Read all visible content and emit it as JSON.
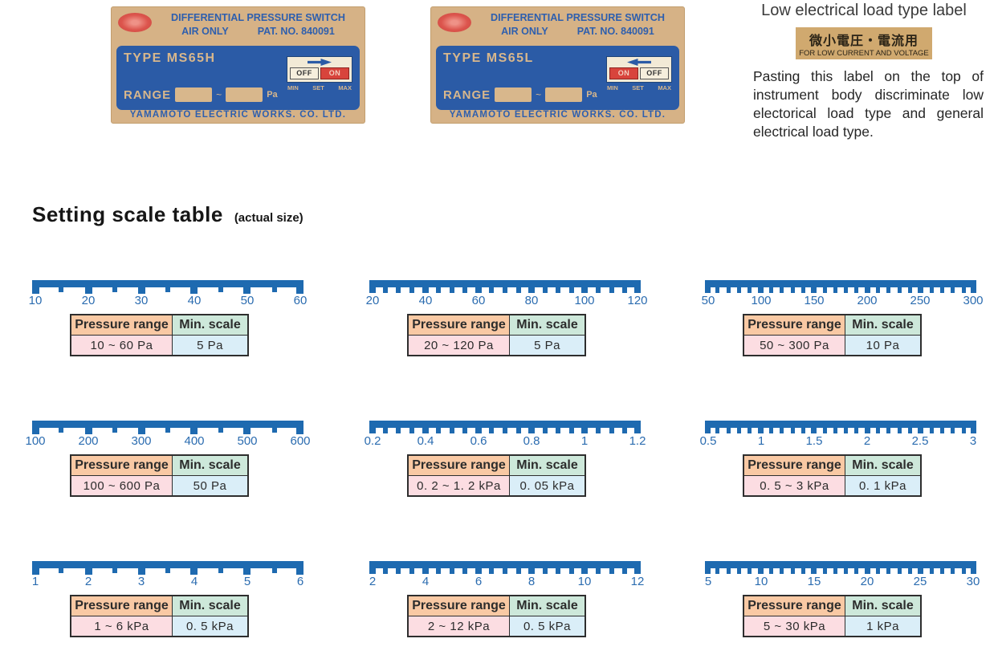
{
  "device_labels": {
    "h": {
      "title": "DIFFERENTIAL PRESSURE SWITCH",
      "air_only": "AIR ONLY",
      "pat_no": "PAT. NO. 840091",
      "type": "TYPE MS65H",
      "range_label": "RANGE",
      "range_tilde": "~",
      "unit": "Pa",
      "indicator_left": "OFF",
      "indicator_right": "ON",
      "min": "MIN",
      "set": "SET",
      "max": "MAX",
      "footer": "YAMAMOTO ELECTRIC WORKS. CO. LTD."
    },
    "l": {
      "title": "DIFFERENTIAL PRESSURE SWITCH",
      "air_only": "AIR ONLY",
      "pat_no": "PAT. NO. 840091",
      "type": "TYPE MS65L",
      "range_label": "RANGE",
      "range_tilde": "~",
      "unit": "Pa",
      "indicator_left": "ON",
      "indicator_right": "OFF",
      "min": "MIN",
      "set": "SET",
      "max": "MAX",
      "footer": "YAMAMOTO ELECTRIC WORKS. CO. LTD."
    }
  },
  "low_load_label": {
    "title": "Low electrical load type label",
    "sticker_jp": "微小電圧・電流用",
    "sticker_en": "FOR LOW CURRENT AND VOLTAGE",
    "description": "Pasting this label on the top of instrument body discriminate low electorical load type and general electrical load type."
  },
  "section": {
    "title": "Setting scale table",
    "subtitle": "(actual size)"
  },
  "table_headers": {
    "pressure": "Pressure range",
    "min_scale": "Min. scale"
  },
  "scales": [
    {
      "min": 10,
      "max": 60,
      "step": 5,
      "tick_labels": [
        "10",
        "20",
        "30",
        "40",
        "50",
        "60"
      ],
      "label_values": [
        10,
        20,
        30,
        40,
        50,
        60
      ],
      "pressure_range": "10 ~ 60 Pa",
      "min_scale": "5 Pa"
    },
    {
      "min": 20,
      "max": 120,
      "step": 5,
      "tick_labels": [
        "20",
        "40",
        "60",
        "80",
        "100",
        "120"
      ],
      "label_values": [
        20,
        40,
        60,
        80,
        100,
        120
      ],
      "pressure_range": "20 ~ 120 Pa",
      "min_scale": "5 Pa"
    },
    {
      "min": 50,
      "max": 300,
      "step": 10,
      "tick_labels": [
        "50",
        "100",
        "150",
        "200",
        "250",
        "300"
      ],
      "label_values": [
        50,
        100,
        150,
        200,
        250,
        300
      ],
      "pressure_range": "50 ~ 300 Pa",
      "min_scale": "10 Pa"
    },
    {
      "min": 100,
      "max": 600,
      "step": 50,
      "tick_labels": [
        "100",
        "200",
        "300",
        "400",
        "500",
        "600"
      ],
      "label_values": [
        100,
        200,
        300,
        400,
        500,
        600
      ],
      "pressure_range": "100 ~ 600 Pa",
      "min_scale": "50 Pa"
    },
    {
      "min": 0.2,
      "max": 1.2,
      "step": 0.05,
      "tick_labels": [
        "0.2",
        "0.4",
        "0.6",
        "0.8",
        "1",
        "1.2"
      ],
      "label_values": [
        0.2,
        0.4,
        0.6,
        0.8,
        1,
        1.2
      ],
      "pressure_range": "0. 2 ~ 1. 2 kPa",
      "min_scale": "0. 05 kPa"
    },
    {
      "min": 0.5,
      "max": 3,
      "step": 0.1,
      "tick_labels": [
        "0.5",
        "1",
        "1.5",
        "2",
        "2.5",
        "3"
      ],
      "label_values": [
        0.5,
        1,
        1.5,
        2,
        2.5,
        3
      ],
      "pressure_range": "0. 5 ~ 3 kPa",
      "min_scale": "0. 1 kPa"
    },
    {
      "min": 1,
      "max": 6,
      "step": 0.5,
      "tick_labels": [
        "1",
        "2",
        "3",
        "4",
        "5",
        "6"
      ],
      "label_values": [
        1,
        2,
        3,
        4,
        5,
        6
      ],
      "pressure_range": "1 ~ 6 kPa",
      "min_scale": "0. 5 kPa"
    },
    {
      "min": 2,
      "max": 12,
      "step": 0.5,
      "tick_labels": [
        "2",
        "4",
        "6",
        "8",
        "10",
        "12"
      ],
      "label_values": [
        2,
        4,
        6,
        8,
        10,
        12
      ],
      "pressure_range": "2 ~ 12 kPa",
      "min_scale": "0. 5 kPa"
    },
    {
      "min": 5,
      "max": 30,
      "step": 1,
      "tick_labels": [
        "5",
        "10",
        "15",
        "20",
        "25",
        "30"
      ],
      "label_values": [
        5,
        10,
        15,
        20,
        25,
        30
      ],
      "pressure_range": "5 ~ 30 kPa",
      "min_scale": "1 kPa"
    }
  ],
  "colors": {
    "ruler_blue": "#1e6ab0",
    "label_tan": "#d6b286",
    "label_blue": "#2b5ba6",
    "logo_red": "#dc554d",
    "indicator_red": "#d8443c",
    "header_pressure_bg": "#f9c9a4",
    "header_minscale_bg": "#cde8da",
    "cell_pressure_bg": "#fcdde2",
    "cell_minscale_bg": "#daeef8"
  }
}
